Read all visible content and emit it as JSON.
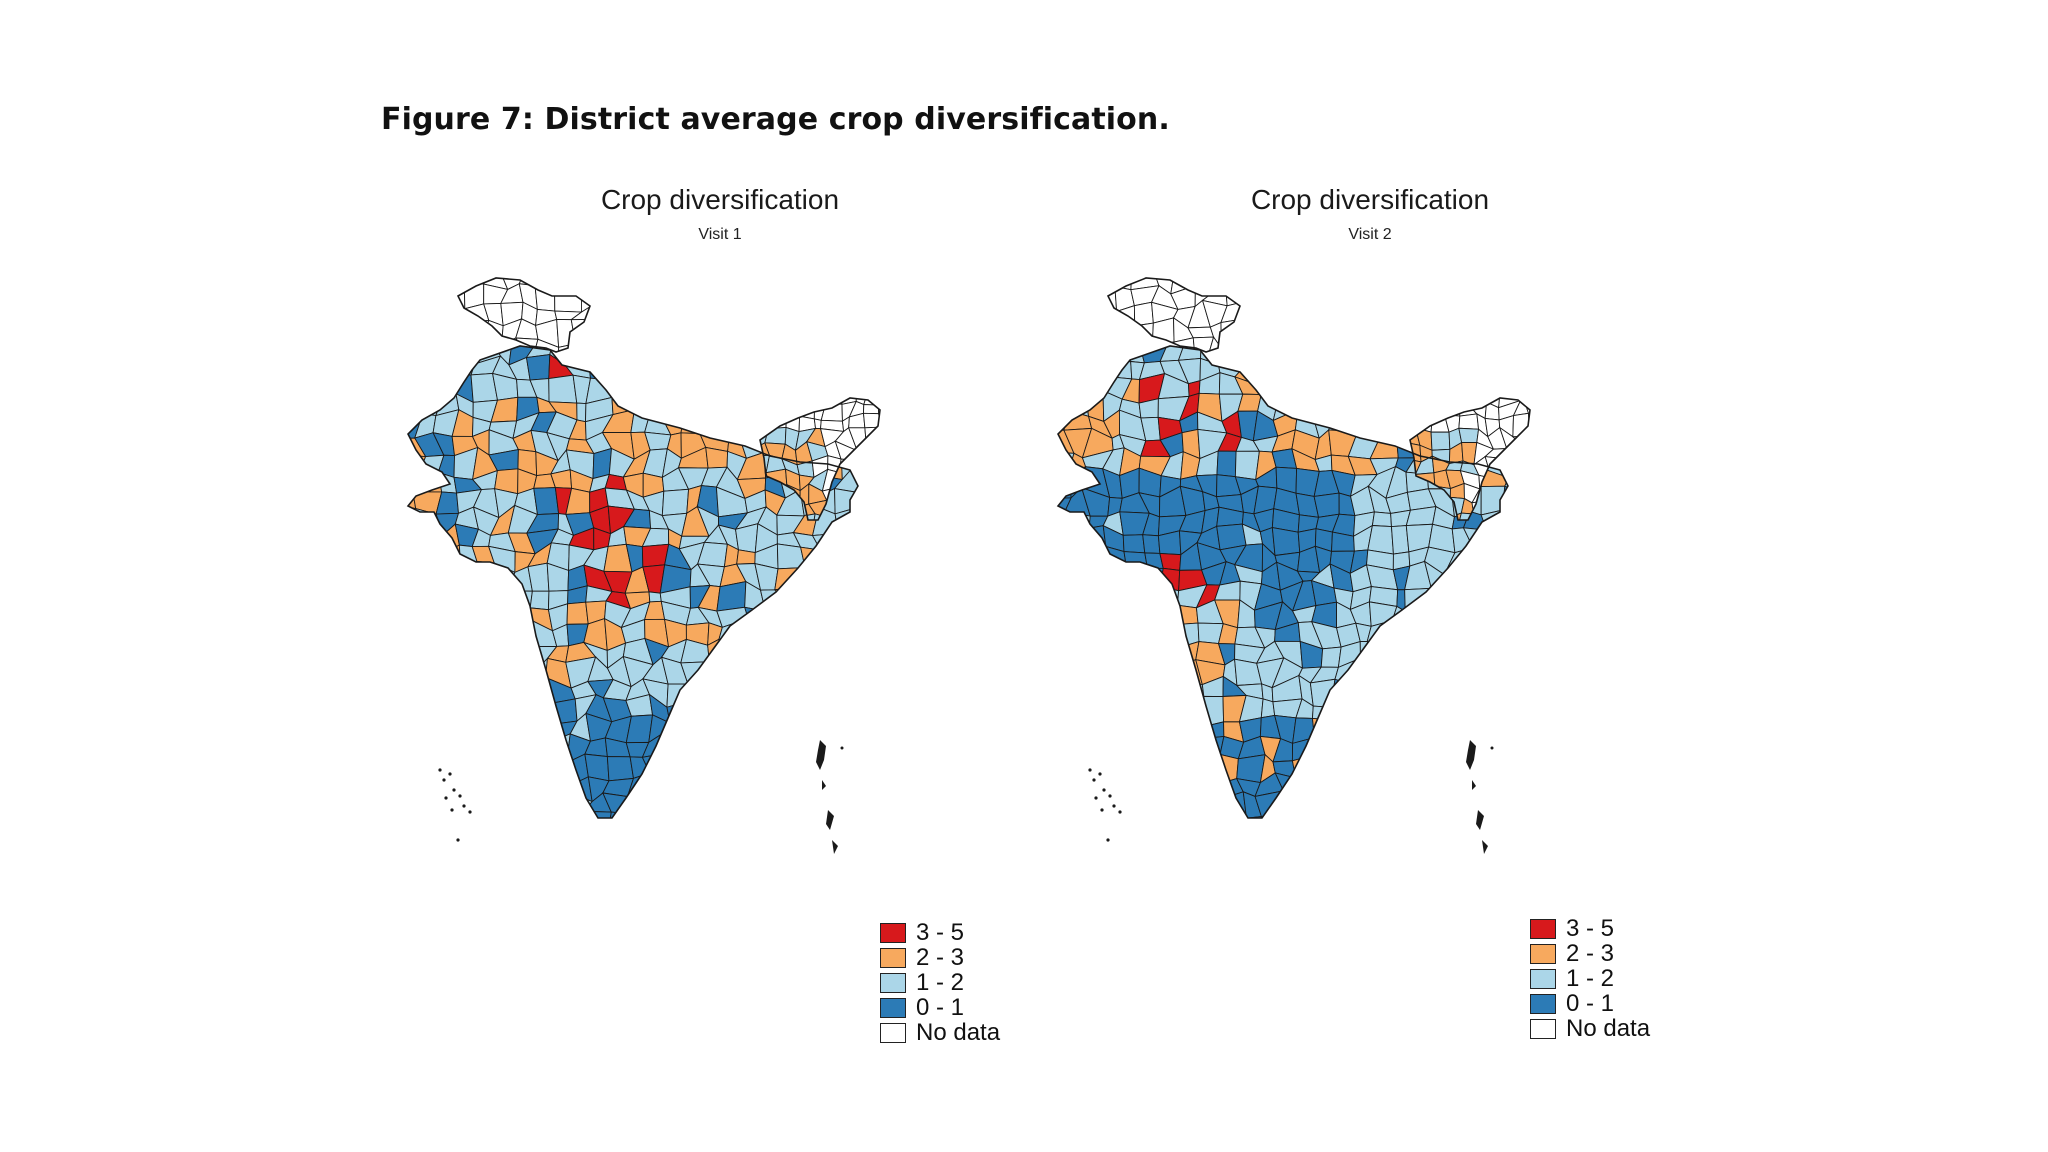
{
  "figure_title": "Figure 7: District average crop diversification.",
  "colors": {
    "c35": "#d7191c",
    "c23": "#f7a95e",
    "c12": "#abd6e8",
    "c01": "#2c7bb6",
    "none": "#ffffff",
    "border": "#1a1a1a"
  },
  "maps": [
    {
      "title": "Crop diversification",
      "subtitle": "Visit 1",
      "legend": [
        {
          "label": "3 - 5",
          "color": "#d7191c"
        },
        {
          "label": "2 - 3",
          "color": "#f7a95e"
        },
        {
          "label": "1 - 2",
          "color": "#abd6e8"
        },
        {
          "label": "0 - 1",
          "color": "#2c7bb6"
        },
        {
          "label": "No data",
          "color": "#ffffff"
        }
      ]
    },
    {
      "title": "Crop diversification",
      "subtitle": "Visit 2",
      "legend": [
        {
          "label": "3 - 5",
          "color": "#d7191c"
        },
        {
          "label": "2 - 3",
          "color": "#f7a95e"
        },
        {
          "label": "1 - 2",
          "color": "#abd6e8"
        },
        {
          "label": "0 - 1",
          "color": "#2c7bb6"
        },
        {
          "label": "No data",
          "color": "#ffffff"
        }
      ]
    }
  ]
}
